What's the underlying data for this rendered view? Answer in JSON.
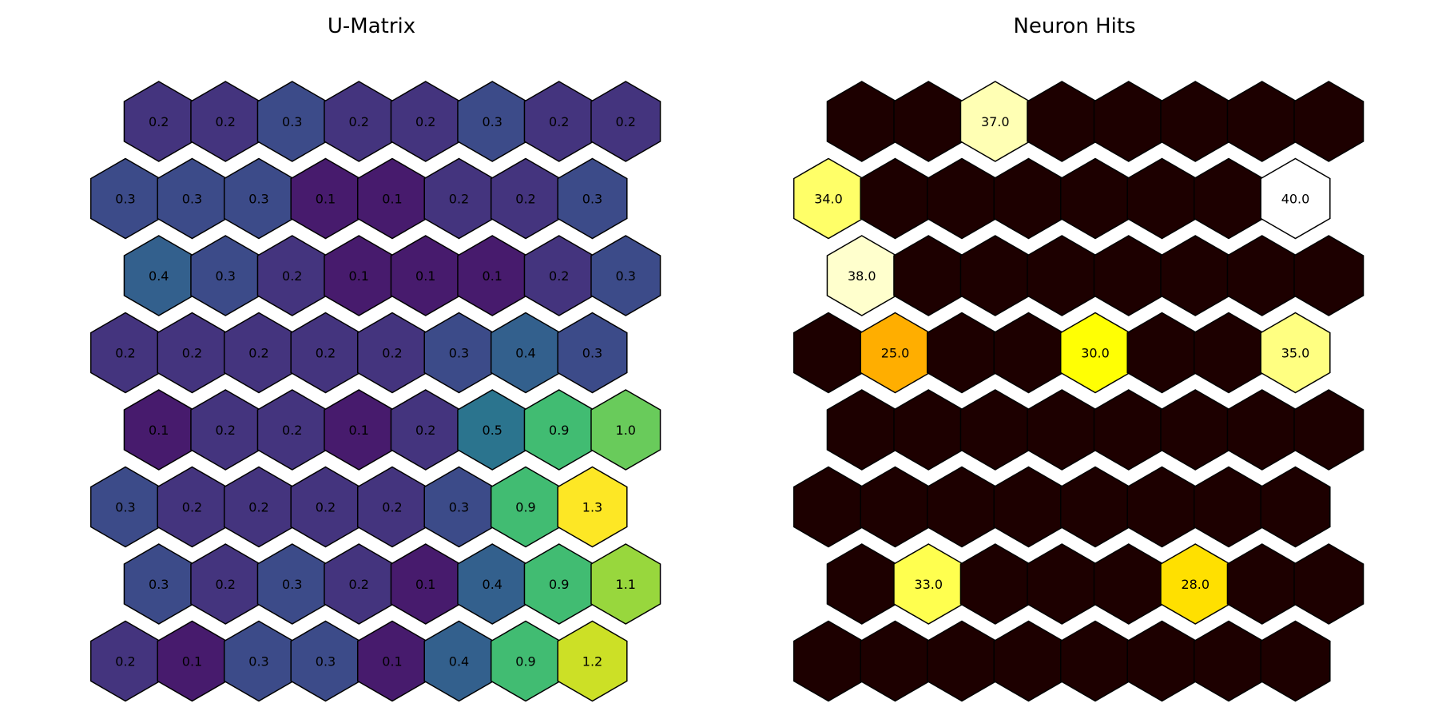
{
  "chart_data": [
    {
      "type": "heatmap",
      "title": "U-Matrix",
      "grid": "hexagonal",
      "rows": 8,
      "cols": 8,
      "colormap": "viridis",
      "value_range": [
        0.0,
        1.3
      ],
      "values": [
        [
          0.2,
          0.2,
          0.3,
          0.2,
          0.2,
          0.3,
          0.2,
          0.2
        ],
        [
          0.3,
          0.3,
          0.3,
          0.1,
          0.1,
          0.2,
          0.2,
          0.3
        ],
        [
          0.4,
          0.3,
          0.2,
          0.1,
          0.1,
          0.1,
          0.2,
          0.3
        ],
        [
          0.2,
          0.2,
          0.2,
          0.2,
          0.2,
          0.3,
          0.4,
          0.3
        ],
        [
          0.1,
          0.2,
          0.2,
          0.1,
          0.2,
          0.5,
          0.9,
          1.0
        ],
        [
          0.3,
          0.2,
          0.2,
          0.2,
          0.2,
          0.3,
          0.9,
          1.3
        ],
        [
          0.3,
          0.2,
          0.3,
          0.2,
          0.1,
          0.4,
          0.9,
          1.1
        ],
        [
          0.2,
          0.1,
          0.3,
          0.3,
          0.1,
          0.4,
          0.9,
          1.2
        ]
      ],
      "cell_labels": [
        [
          "0.2",
          "0.2",
          "0.3",
          "0.2",
          "0.2",
          "0.3",
          "0.2",
          "0.2"
        ],
        [
          "0.3",
          "0.3",
          "0.3",
          "0.1",
          "0.1",
          "0.2",
          "0.2",
          "0.3"
        ],
        [
          "0.4",
          "0.3",
          "0.2",
          "0.1",
          "0.1",
          "0.1",
          "0.2",
          "0.3"
        ],
        [
          "0.2",
          "0.2",
          "0.2",
          "0.2",
          "0.2",
          "0.3",
          "0.4",
          "0.3"
        ],
        [
          "0.1",
          "0.2",
          "0.2",
          "0.1",
          "0.2",
          "0.5",
          "0.9",
          "1.0"
        ],
        [
          "0.3",
          "0.2",
          "0.2",
          "0.2",
          "0.2",
          "0.3",
          "0.9",
          "1.3"
        ],
        [
          "0.3",
          "0.2",
          "0.3",
          "0.2",
          "0.1",
          "0.4",
          "0.9",
          "1.1"
        ],
        [
          "0.2",
          "0.1",
          "0.3",
          "0.3",
          "0.1",
          "0.4",
          "0.9",
          "1.2"
        ]
      ]
    },
    {
      "type": "heatmap",
      "title": "Neuron Hits",
      "grid": "hexagonal",
      "rows": 8,
      "cols": 8,
      "colormap": "hot",
      "value_range": [
        0.0,
        40.0
      ],
      "values": [
        [
          0,
          0,
          37.0,
          0,
          0,
          0,
          0,
          0
        ],
        [
          34.0,
          0,
          0,
          0,
          0,
          0,
          0,
          40.0
        ],
        [
          38.0,
          0,
          0,
          0,
          0,
          0,
          0,
          0
        ],
        [
          0,
          25.0,
          0,
          0,
          30.0,
          0,
          0,
          35.0
        ],
        [
          0,
          0,
          0,
          0,
          0,
          0,
          0,
          0
        ],
        [
          0,
          0,
          0,
          0,
          0,
          0,
          0,
          0
        ],
        [
          0,
          33.0,
          0,
          0,
          0,
          28.0,
          0,
          0
        ],
        [
          0,
          0,
          0,
          0,
          0,
          0,
          0,
          0
        ]
      ],
      "cell_labels": [
        [
          "",
          "",
          "37.0",
          "",
          "",
          "",
          "",
          ""
        ],
        [
          "34.0",
          "",
          "",
          "",
          "",
          "",
          "",
          "40.0"
        ],
        [
          "38.0",
          "",
          "",
          "",
          "",
          "",
          "",
          ""
        ],
        [
          "",
          "25.0",
          "",
          "",
          "30.0",
          "",
          "",
          "35.0"
        ],
        [
          "",
          "",
          "",
          "",
          "",
          "",
          "",
          ""
        ],
        [
          "",
          "",
          "",
          "",
          "",
          "",
          "",
          ""
        ],
        [
          "",
          "33.0",
          "",
          "",
          "",
          "28.0",
          "",
          ""
        ],
        [
          "",
          "",
          "",
          "",
          "",
          "",
          "",
          ""
        ]
      ]
    }
  ]
}
